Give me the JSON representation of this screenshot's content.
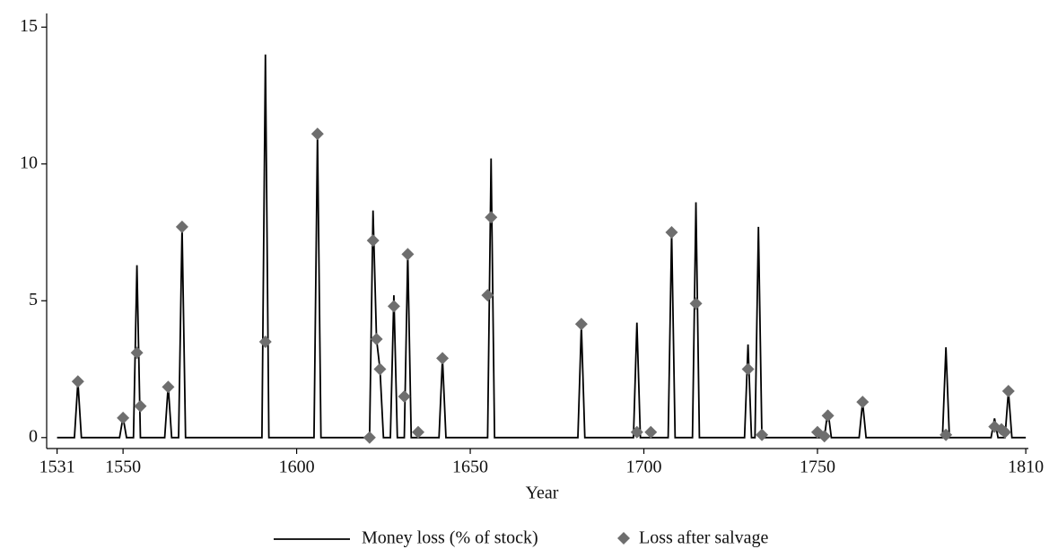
{
  "chart_data": {
    "type": "line",
    "x_label": "Year",
    "xlim": [
      1528,
      1811
    ],
    "xticks": [
      1531,
      1550,
      1600,
      1650,
      1700,
      1750,
      1810
    ],
    "ylim": [
      -0.4,
      15.5
    ],
    "yticks": [
      0,
      5,
      10,
      15
    ],
    "series": [
      {
        "name": "Money loss (% of stock)",
        "type": "line",
        "color": "#000000",
        "x": [
          1531,
          1536,
          1537,
          1538,
          1549,
          1550,
          1551,
          1553,
          1554,
          1555,
          1562,
          1563,
          1564,
          1566,
          1567,
          1568,
          1590,
          1591,
          1592,
          1605,
          1606,
          1607,
          1621,
          1622,
          1623,
          1624,
          1625,
          1627,
          1628,
          1629,
          1631,
          1632,
          1633,
          1641,
          1642,
          1643,
          1655,
          1656,
          1657,
          1681,
          1682,
          1683,
          1697,
          1698,
          1699,
          1707,
          1708,
          1709,
          1714,
          1715,
          1716,
          1729,
          1730,
          1731,
          1732,
          1733,
          1734,
          1752,
          1753,
          1754,
          1762,
          1763,
          1764,
          1786,
          1787,
          1788,
          1800,
          1801,
          1802,
          1804,
          1805,
          1806,
          1810
        ],
        "values": [
          0,
          0,
          2.05,
          0,
          0,
          0.75,
          0,
          0,
          6.3,
          0,
          0,
          1.9,
          0,
          0,
          7.7,
          0,
          0,
          14.0,
          0,
          0,
          11.1,
          0,
          0,
          8.3,
          3.6,
          2.5,
          0,
          0,
          5.2,
          0,
          0,
          6.7,
          0,
          0,
          2.9,
          0,
          0,
          10.2,
          0,
          0,
          4.1,
          0,
          0,
          4.2,
          0,
          0,
          7.5,
          0,
          0,
          8.6,
          0,
          0,
          3.4,
          0,
          0,
          7.7,
          0,
          0,
          1.0,
          0,
          0,
          1.3,
          0,
          0,
          3.3,
          0,
          0,
          0.7,
          0,
          0,
          1.7,
          0,
          0
        ]
      },
      {
        "name": "Loss after salvage",
        "type": "scatter",
        "color": "#6e6e6e",
        "x": [
          1537,
          1550,
          1554,
          1555,
          1563,
          1567,
          1591,
          1606,
          1621,
          1622,
          1623,
          1624,
          1628,
          1631,
          1632,
          1635,
          1642,
          1655,
          1656,
          1682,
          1698,
          1702,
          1708,
          1715,
          1730,
          1734,
          1750,
          1752,
          1753,
          1763,
          1787,
          1801,
          1803,
          1804,
          1805
        ],
        "values": [
          2.05,
          0.72,
          3.1,
          1.15,
          1.85,
          7.7,
          3.5,
          11.1,
          0.0,
          7.2,
          3.6,
          2.5,
          4.8,
          1.5,
          6.7,
          0.2,
          2.9,
          5.2,
          8.05,
          4.15,
          0.2,
          0.2,
          7.5,
          4.9,
          2.5,
          0.1,
          0.2,
          0.05,
          0.8,
          1.3,
          0.1,
          0.4,
          0.3,
          0.2,
          1.7
        ]
      }
    ]
  }
}
